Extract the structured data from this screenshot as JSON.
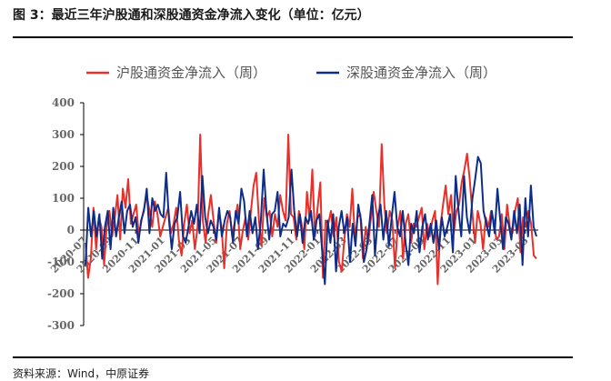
{
  "figure": {
    "title": "图 3：最近三年沪股通和深股通资金净流入变化（单位：亿元）",
    "source": "资料来源：Wind，中原证券"
  },
  "colors": {
    "sh": "#e8302a",
    "sz": "#0c2d8a",
    "axis": "#000000",
    "tick_text": "#666666"
  },
  "chart_data": {
    "type": "line",
    "title": "图 3：最近三年沪股通和深股通资金净流入变化（单位：亿元）",
    "xlabel": "",
    "ylabel": "",
    "ylim": [
      -300,
      400
    ],
    "yticks": [
      -300,
      -200,
      -100,
      0,
      100,
      200,
      300,
      400
    ],
    "x_ticks": [
      "2020-07",
      "2020-09",
      "2020-11",
      "2021-01",
      "2021-03",
      "2021-05",
      "2021-07",
      "2021-09",
      "2021-11",
      "2022-01",
      "2022-03",
      "2022-05",
      "2022-07",
      "2022-09",
      "2022-11",
      "2023-01",
      "2023-03",
      "2023-05"
    ],
    "grid": false,
    "legend": "top",
    "x_start": "2020-07",
    "x_end": "2023-06",
    "series": [
      {
        "name": "沪股通资金净流入（周）",
        "color": "#e8302a",
        "values": [
          -40,
          -150,
          -90,
          70,
          -60,
          40,
          10,
          -110,
          20,
          60,
          -20,
          40,
          110,
          -30,
          130,
          70,
          160,
          20,
          50,
          80,
          -20,
          30,
          70,
          110,
          60,
          10,
          90,
          50,
          -20,
          10,
          40,
          70,
          -10,
          20,
          70,
          -30,
          -80,
          20,
          80,
          -10,
          30,
          -60,
          10,
          300,
          30,
          -40,
          50,
          110,
          30,
          -40,
          60,
          10,
          -120,
          20,
          60,
          -20,
          30,
          80,
          -60,
          0,
          40,
          -30,
          60,
          140,
          180,
          30,
          -50,
          100,
          40,
          60,
          -20,
          50,
          10,
          110,
          60,
          30,
          300,
          50,
          40,
          -30,
          60,
          20,
          -60,
          120,
          30,
          190,
          -20,
          70,
          150,
          -150,
          30,
          20,
          60,
          -20,
          40,
          -100,
          -130,
          -30,
          50,
          10,
          130,
          -30,
          40,
          50,
          -90,
          10,
          -40,
          40,
          120,
          60,
          10,
          270,
          80,
          -10,
          60,
          30,
          -120,
          10,
          60,
          -90,
          20,
          50,
          -40,
          20,
          10,
          40,
          70,
          -60,
          20,
          -20,
          30,
          60,
          -170,
          10,
          80,
          140,
          50,
          110,
          -10,
          60,
          80,
          150,
          190,
          240,
          160,
          50,
          -40,
          60,
          20,
          -60,
          40,
          10,
          60,
          30,
          -30,
          -20,
          50,
          -60,
          80,
          10,
          -10,
          60,
          100,
          -70,
          40,
          10,
          60,
          20,
          -80,
          -90
        ]
      },
      {
        "name": "深股通资金净流入（周）",
        "color": "#0c2d8a",
        "values": [
          -110,
          70,
          -20,
          60,
          -20,
          50,
          -90,
          10,
          60,
          -60,
          70,
          -20,
          40,
          90,
          -10,
          60,
          80,
          10,
          40,
          -40,
          30,
          60,
          130,
          -10,
          100,
          60,
          80,
          50,
          40,
          180,
          30,
          -60,
          20,
          40,
          120,
          -20,
          -40,
          10,
          60,
          20,
          80,
          -10,
          170,
          40,
          -10,
          30,
          10,
          -30,
          70,
          -20,
          30,
          60,
          40,
          -40,
          60,
          20,
          130,
          90,
          -20,
          60,
          -10,
          40,
          -60,
          30,
          190,
          60,
          -30,
          50,
          60,
          120,
          -20,
          20,
          10,
          40,
          190,
          60,
          -20,
          50,
          -40,
          40,
          20,
          60,
          -30,
          30,
          50,
          -60,
          -170,
          30,
          -40,
          50,
          -130,
          10,
          60,
          -10,
          40,
          -100,
          20,
          -50,
          80,
          30,
          -100,
          -60,
          20,
          110,
          -80,
          40,
          80,
          -30,
          60,
          -50,
          40,
          120,
          10,
          -20,
          60,
          -40,
          -110,
          20,
          -10,
          60,
          -70,
          10,
          50,
          -30,
          20,
          -40,
          30,
          -60,
          40,
          -20,
          10,
          50,
          -70,
          170,
          60,
          -20,
          170,
          40,
          -10,
          100,
          160,
          230,
          210,
          60,
          20,
          -20,
          60,
          -10,
          130,
          30,
          -60,
          40,
          20,
          -30,
          60,
          -10,
          80,
          -110,
          100,
          -20,
          140,
          10,
          -20
        ]
      }
    ]
  }
}
